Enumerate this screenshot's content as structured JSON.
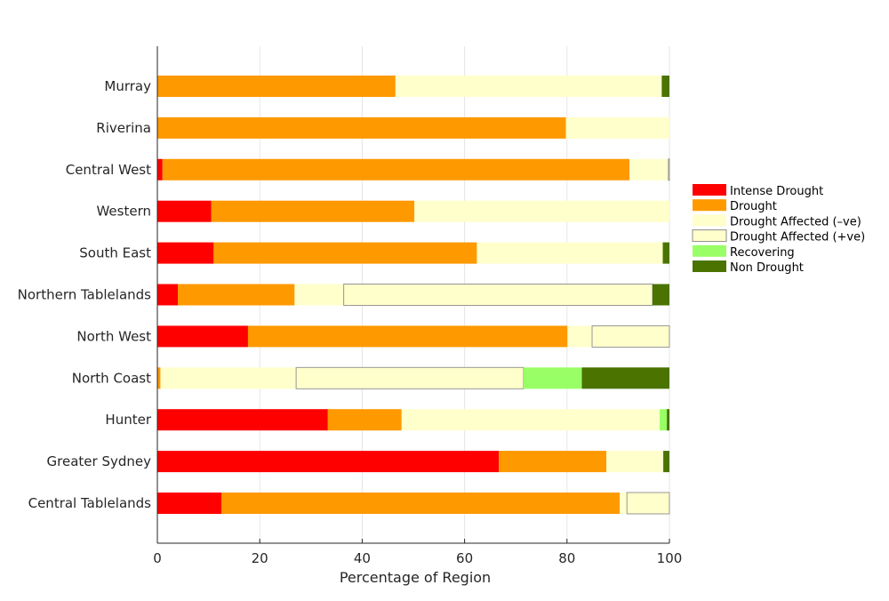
{
  "chart_data": {
    "type": "bar",
    "orientation": "horizontal",
    "stacked": true,
    "title": "",
    "xlabel": "Percentage of Region",
    "ylabel": "",
    "xlim": [
      0,
      100
    ],
    "xticks": [
      0,
      20,
      40,
      60,
      80,
      100
    ],
    "grid": true,
    "legend_position": "right",
    "categories": [
      "Murray",
      "Riverina",
      "Central West",
      "Western",
      "South East",
      "Northern Tablelands",
      "North West",
      "North Coast",
      "Hunter",
      "Greater Sydney",
      "Central Tablelands"
    ],
    "series": [
      {
        "name": "Intense Drought",
        "color": "#ff0000",
        "outlined": false,
        "values": [
          0,
          0,
          1,
          10.5,
          11,
          4,
          17.7,
          0,
          33.3,
          66.7,
          12.5
        ]
      },
      {
        "name": "Drought",
        "color": "#ff9900",
        "outlined": false,
        "values": [
          46.5,
          79.8,
          91.2,
          39.7,
          51.4,
          22.8,
          62.4,
          0.6,
          14.4,
          21,
          77.8
        ]
      },
      {
        "name": "Drought Affected (–ve)",
        "color": "#ffffcc",
        "outlined": false,
        "values": [
          52,
          20.2,
          7.6,
          49.8,
          36.3,
          9.6,
          4.8,
          26.5,
          50.4,
          11.1,
          1.4
        ]
      },
      {
        "name": "Drought Affected (+ve)",
        "color": "#ffffcc",
        "outlined": true,
        "values": [
          0,
          0,
          0.2,
          0,
          0,
          60.3,
          15.1,
          44.4,
          0,
          0,
          8.3
        ]
      },
      {
        "name": "Recovering",
        "color": "#99ff66",
        "outlined": false,
        "values": [
          0,
          0,
          0,
          0,
          0,
          0,
          0,
          11.4,
          1.4,
          0,
          0
        ]
      },
      {
        "name": "Non Drought",
        "color": "#4a7300",
        "outlined": false,
        "values": [
          1.5,
          0,
          0,
          0,
          1.3,
          3.3,
          0,
          17.1,
          0.5,
          1.2,
          0
        ]
      }
    ]
  }
}
